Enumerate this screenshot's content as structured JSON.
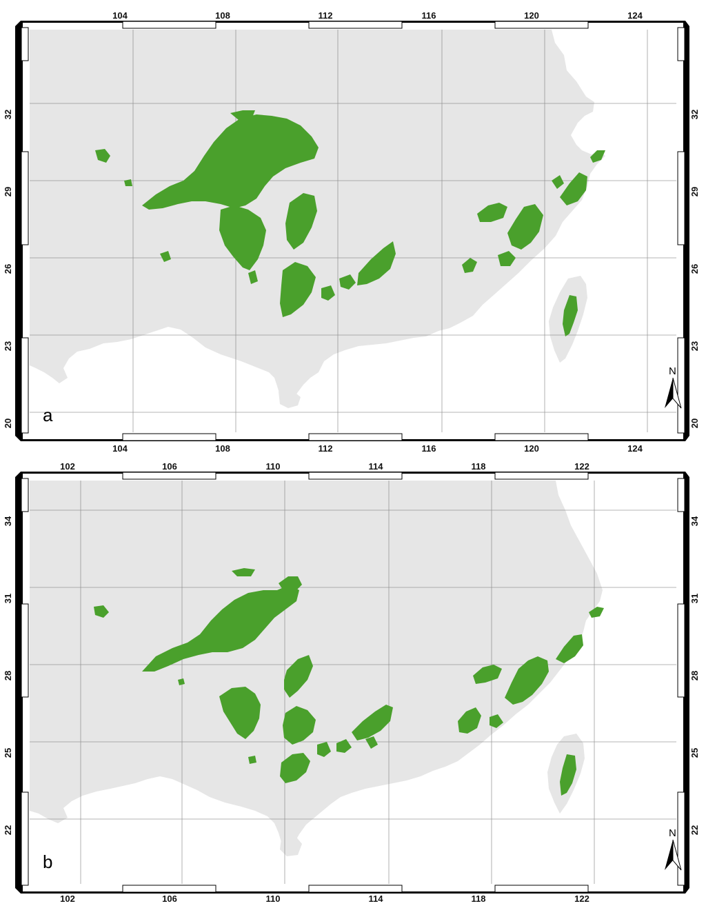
{
  "panels": [
    {
      "label": "a",
      "lon_ticks": [
        "104",
        "108",
        "112",
        "116",
        "120",
        "124"
      ],
      "lat_ticks": [
        "32",
        "29",
        "26",
        "23",
        "20"
      ],
      "north_label": "N"
    },
    {
      "label": "b",
      "lon_ticks": [
        "102",
        "106",
        "110",
        "114",
        "118",
        "122"
      ],
      "lat_ticks": [
        "34",
        "31",
        "28",
        "25",
        "22"
      ],
      "north_label": "N"
    }
  ],
  "colors": {
    "land": "#e6e6e6",
    "sea": "#ffffff",
    "vegetation": "#4aa02c",
    "gridline": "#7a7a7a",
    "frame_dark": "#000000"
  }
}
